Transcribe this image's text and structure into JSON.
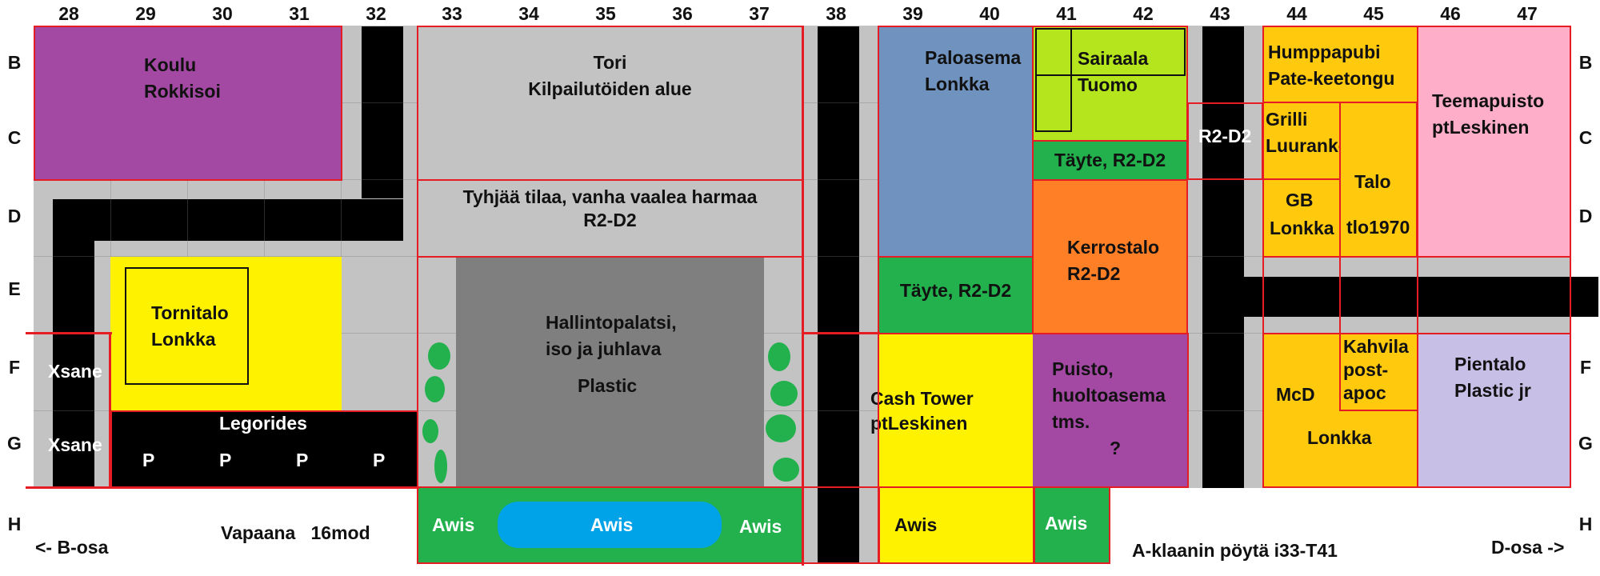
{
  "columns": [
    "28",
    "29",
    "30",
    "31",
    "32",
    "33",
    "34",
    "35",
    "36",
    "37",
    "38",
    "39",
    "40",
    "41",
    "42",
    "43",
    "44",
    "45",
    "46",
    "47"
  ],
  "rows": [
    "B",
    "C",
    "D",
    "E",
    "F",
    "G",
    "H"
  ],
  "colors": {
    "road": "#000000",
    "sidewalk": "#c3c3c3",
    "grey_dark": "#7f7f7f",
    "purple": "#a349a4",
    "yellow": "#fff200",
    "blue": "#7092be",
    "lime": "#b5e61d",
    "green": "#22b14c",
    "orange": "#ff7f27",
    "amber": "#ffc90e",
    "pink": "#ffaec9",
    "lavender": "#c8bfe7",
    "water": "#00a2e8",
    "border": "#e51c23"
  },
  "labels": {
    "koulu": [
      "Koulu",
      "Rokkisoi"
    ],
    "tori": [
      "Tori",
      "Kilpailutöiden alue"
    ],
    "tyhja": [
      "Tyhjää tilaa, vanha vaalea harmaa",
      "R2-D2"
    ],
    "paloasema": [
      "Paloasema",
      "Lonkka"
    ],
    "sairaala": [
      "Sairaala",
      "Tuomo"
    ],
    "tayte1": "Täyte, R2-D2",
    "r2d2": "R2-D2",
    "humppapubi": [
      "Humppapubi",
      "Pate-keetongu"
    ],
    "teemapuisto": [
      "Teemapuisto",
      "ptLeskinen"
    ],
    "grilli": [
      "Grilli",
      "Luuranko"
    ],
    "gb": [
      "GB",
      "Lonkka"
    ],
    "talo": [
      "Talo",
      "tlo1970"
    ],
    "kerrostalo": [
      "Kerrostalo",
      "R2-D2"
    ],
    "tayte2": "Täyte, R2-D2",
    "tornitalo": [
      "Tornitalo",
      "Lonkka"
    ],
    "hallinto": [
      "Hallintopalatsi,",
      "iso ja juhlava",
      "Plastic"
    ],
    "xsane1": "Xsane",
    "xsane2": "Xsane",
    "legorides": "Legorides",
    "parking": [
      "P",
      "P",
      "P",
      "P"
    ],
    "cash": [
      "Cash Tower",
      "ptLeskinen"
    ],
    "puisto": [
      "Puisto,",
      "huoltoasema",
      "tms.",
      "?"
    ],
    "kahvila": [
      "Kahvila",
      "post-",
      "apoc"
    ],
    "mcd": "McD",
    "lonkka": "Lonkka",
    "pientalo": [
      "Pientalo",
      "Plastic jr"
    ],
    "awis": [
      "Awis",
      "Awis",
      "Awis",
      "Awis",
      "Awis"
    ],
    "b_osa": "<- B-osa",
    "vapaana": "Vapaana   16mod",
    "a_klaani": "A-klaanin pöytä i33-T41",
    "d_osa": "D-osa ->"
  }
}
